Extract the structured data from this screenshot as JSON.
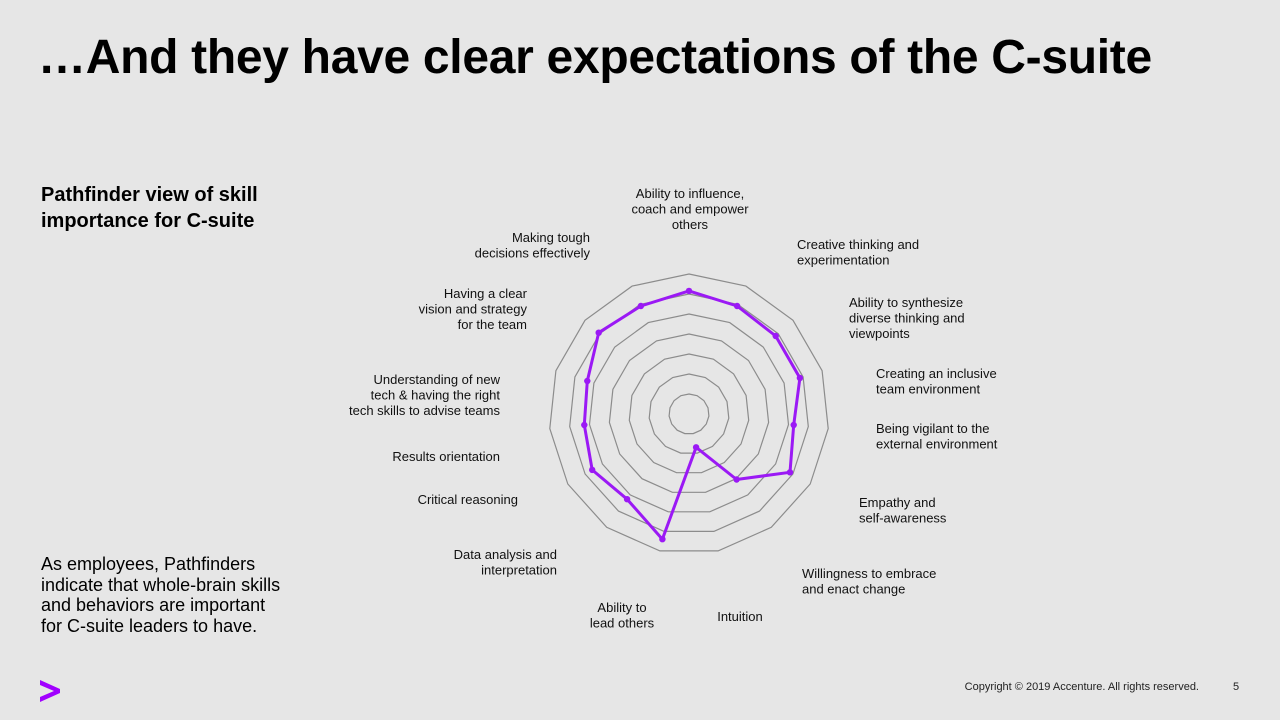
{
  "slide": {
    "title": "…And they have clear expectations of the C-suite",
    "subtitle_lines": [
      "Pathfinder view of skill",
      "importance for C-suite"
    ],
    "body_lines": [
      "As employees, Pathfinders",
      "indicate that whole-brain skills",
      "and behaviors are important",
      "for C-suite leaders to have."
    ],
    "copyright": "Copyright © 2019 Accenture. All rights reserved.",
    "page_number": "5",
    "logo_icon": "accenture-greater-than-icon",
    "accent_color": "#a100ff"
  },
  "chart_data": {
    "type": "radar",
    "title": "",
    "grid": true,
    "grid_rings": 7,
    "series_color": "#9b19f5",
    "grid_color": "#8c8c8c",
    "categories": [
      [
        "Ability to influence,",
        "coach and empower",
        "others"
      ],
      [
        "Creative thinking and",
        "experimentation"
      ],
      [
        "Ability to synthesize",
        "diverse thinking and",
        "viewpoints"
      ],
      [
        "Creating an inclusive",
        "team environment"
      ],
      [
        "Being vigilant to the",
        "external environment"
      ],
      [
        "Empathy and",
        "self-awareness"
      ],
      [
        "Willingness to embrace",
        "and enact change"
      ],
      [
        "Intuition"
      ],
      [
        "Ability to",
        "lead others"
      ],
      [
        "Data analysis and",
        "interpretation"
      ],
      [
        "Critical reasoning"
      ],
      [
        "Results orientation"
      ],
      [
        "Understanding of new",
        "tech & having the right",
        "tech skills to advise teams"
      ],
      [
        "Having a clear",
        "vision and strategy",
        "for the team"
      ],
      [
        "Making tough",
        "decisions effectively"
      ]
    ],
    "series": [
      {
        "values": [
          0.76,
          0.73,
          0.72,
          0.72,
          0.65,
          0.72,
          0.5,
          0.21,
          0.79,
          0.65,
          0.69,
          0.65,
          0.66,
          0.75,
          0.73
        ]
      }
    ]
  }
}
